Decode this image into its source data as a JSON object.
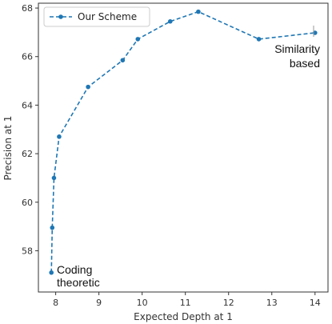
{
  "chart_data": {
    "type": "line",
    "xlabel": "Expected Depth at 1",
    "ylabel": "Precision at 1",
    "xlim": [
      7.6,
      14.3
    ],
    "ylim": [
      56.3,
      68.2
    ],
    "xticks": [
      8,
      9,
      10,
      11,
      12,
      13,
      14
    ],
    "yticks": [
      58,
      60,
      62,
      64,
      66,
      68
    ],
    "grid": false,
    "legend_position": "top-left",
    "series": [
      {
        "name": "Our Scheme",
        "color": "#1f77b4",
        "line_style": "dashed",
        "marker": "circle",
        "x": [
          7.9,
          7.92,
          7.96,
          8.08,
          8.75,
          9.55,
          9.9,
          10.65,
          11.3,
          12.7,
          14.0
        ],
        "y": [
          57.1,
          58.95,
          61.0,
          62.7,
          64.75,
          65.85,
          66.72,
          67.45,
          67.85,
          66.72,
          66.98
        ]
      }
    ],
    "annotations": [
      {
        "id": "coding",
        "lines": [
          "Coding",
          "theoretic"
        ]
      },
      {
        "id": "similarity",
        "lines": [
          "Similarity",
          "based"
        ]
      }
    ]
  }
}
